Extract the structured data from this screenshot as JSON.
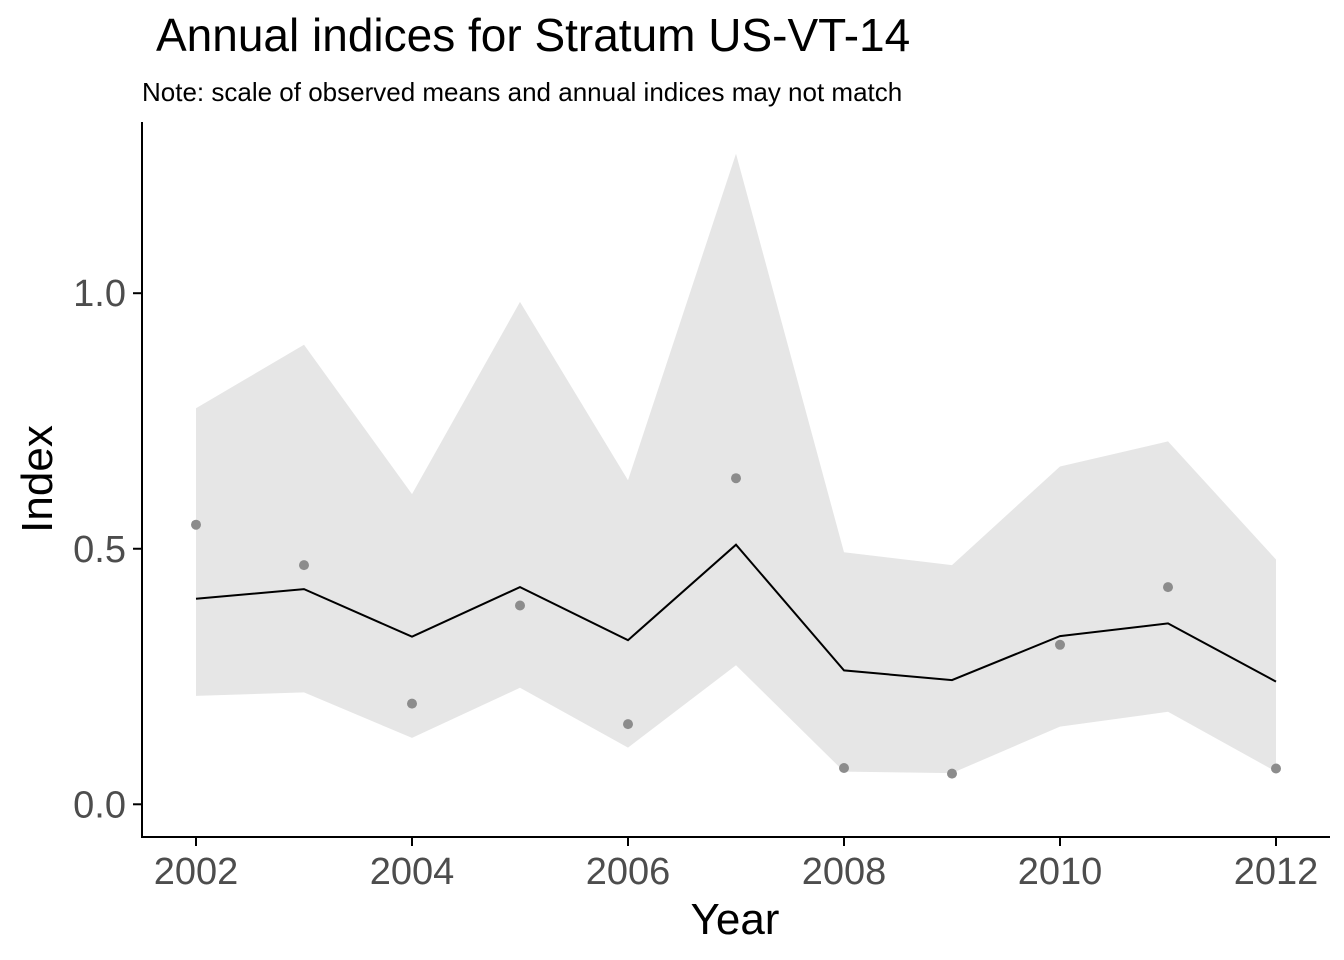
{
  "chart_data": {
    "type": "line",
    "title": "Annual indices for Stratum US-VT-14",
    "subtitle": "Note: scale of observed means and annual indices may not match",
    "xlabel": "Year",
    "ylabel": "Index",
    "xlim": [
      2001.5,
      2012.5
    ],
    "ylim": [
      -0.064,
      1.335
    ],
    "x_ticks": [
      2002,
      2004,
      2006,
      2008,
      2010,
      2012
    ],
    "y_ticks": [
      0.0,
      0.5,
      1.0
    ],
    "y_tick_labels": [
      "0.0",
      "0.5",
      "1.0"
    ],
    "grid": false,
    "colors": {
      "ribbon": "#e6e6e6",
      "line": "#000000",
      "points": "#8c8c8c",
      "axis": "#000000"
    },
    "x": [
      2002,
      2003,
      2004,
      2005,
      2006,
      2007,
      2008,
      2009,
      2010,
      2011,
      2012
    ],
    "index": [
      0.402,
      0.421,
      0.328,
      0.425,
      0.321,
      0.508,
      0.262,
      0.243,
      0.329,
      0.354,
      0.24
    ],
    "lower": [
      0.212,
      0.219,
      0.13,
      0.228,
      0.111,
      0.272,
      0.064,
      0.061,
      0.152,
      0.181,
      0.064
    ],
    "upper": [
      0.775,
      0.899,
      0.607,
      0.983,
      0.634,
      1.273,
      0.493,
      0.468,
      0.661,
      0.71,
      0.479
    ],
    "observed_means": [
      0.547,
      0.468,
      0.197,
      0.389,
      0.157,
      0.638,
      0.071,
      0.06,
      0.312,
      0.425,
      0.07
    ]
  }
}
